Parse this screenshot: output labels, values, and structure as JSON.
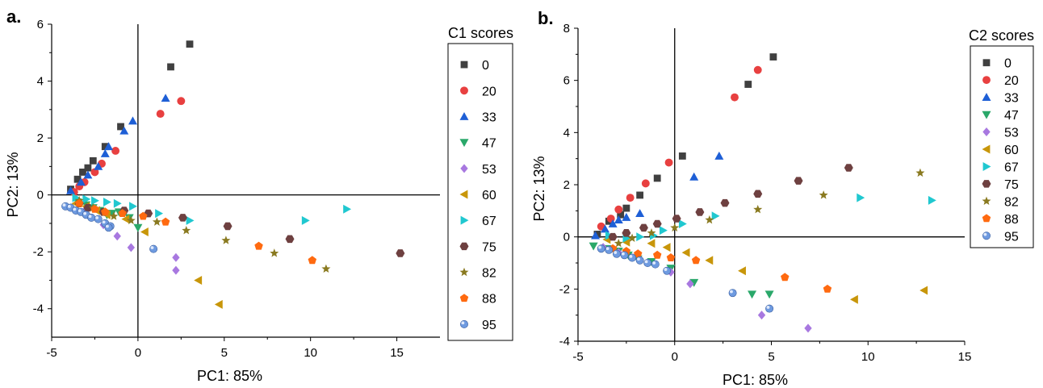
{
  "chart_data": [
    {
      "type": "scatter",
      "panel_label": "a.",
      "xlabel": "PC1: 85%",
      "ylabel": "PC2: 13%",
      "xlim": [
        -5,
        17.5
      ],
      "ylim": [
        -5,
        6
      ],
      "xticks": [
        -5,
        0,
        5,
        10,
        15
      ],
      "yticks": [
        -4,
        -2,
        0,
        2,
        4,
        6
      ],
      "grid": false,
      "legend_title": "C1 scores",
      "legend_position": "right",
      "series": [
        {
          "name": "0",
          "marker": "square",
          "color": "#404040",
          "points": [
            [
              -3.9,
              0.2
            ],
            [
              -3.5,
              0.55
            ],
            [
              -3.2,
              0.8
            ],
            [
              -2.9,
              0.95
            ],
            [
              -2.6,
              1.2
            ],
            [
              -1.9,
              1.7
            ],
            [
              -1.0,
              2.4
            ],
            [
              1.9,
              4.5
            ],
            [
              3.0,
              5.3
            ]
          ]
        },
        {
          "name": "20",
          "marker": "circle",
          "color": "#e84040",
          "points": [
            [
              -3.7,
              0.1
            ],
            [
              -3.4,
              0.3
            ],
            [
              -3.1,
              0.45
            ],
            [
              -2.5,
              0.8
            ],
            [
              -2.1,
              1.1
            ],
            [
              -1.3,
              1.55
            ],
            [
              1.3,
              2.85
            ],
            [
              2.5,
              3.3
            ]
          ]
        },
        {
          "name": "33",
          "marker": "triangle-up",
          "color": "#1e5fd6",
          "points": [
            [
              -3.9,
              0.15
            ],
            [
              -3.3,
              0.45
            ],
            [
              -2.9,
              0.7
            ],
            [
              -2.3,
              1.0
            ],
            [
              -1.9,
              1.45
            ],
            [
              -1.7,
              1.7
            ],
            [
              -0.8,
              2.25
            ],
            [
              -0.3,
              2.6
            ],
            [
              1.6,
              3.4
            ]
          ]
        },
        {
          "name": "47",
          "marker": "triangle-down",
          "color": "#2aa86a",
          "points": [
            [
              -3.5,
              -0.25
            ],
            [
              -3.0,
              -0.35
            ],
            [
              -2.6,
              -0.45
            ],
            [
              -2.2,
              -0.55
            ],
            [
              -1.8,
              -0.7
            ],
            [
              -1.5,
              -0.65
            ],
            [
              -1.1,
              -0.6
            ],
            [
              -0.5,
              -0.8
            ],
            [
              0.0,
              -1.15
            ]
          ]
        },
        {
          "name": "53",
          "marker": "diamond",
          "color": "#a878e0",
          "points": [
            [
              -3.0,
              -0.5
            ],
            [
              -2.0,
              -1.05
            ],
            [
              -1.2,
              -1.45
            ],
            [
              -0.4,
              -1.85
            ],
            [
              2.2,
              -2.2
            ],
            [
              2.2,
              -2.65
            ]
          ]
        },
        {
          "name": "60",
          "marker": "triangle-left",
          "color": "#c8960a",
          "points": [
            [
              -3.6,
              -0.3
            ],
            [
              -3.0,
              -0.4
            ],
            [
              -2.4,
              -0.55
            ],
            [
              -1.8,
              -0.7
            ],
            [
              -0.7,
              -0.85
            ],
            [
              0.4,
              -1.3
            ],
            [
              3.5,
              -3.0
            ],
            [
              4.7,
              -3.85
            ]
          ]
        },
        {
          "name": "67",
          "marker": "triangle-right",
          "color": "#20c8d0",
          "points": [
            [
              -3.6,
              -0.1
            ],
            [
              -3.0,
              -0.15
            ],
            [
              -2.5,
              -0.2
            ],
            [
              -1.8,
              -0.25
            ],
            [
              -1.2,
              -0.3
            ],
            [
              -0.3,
              -0.4
            ],
            [
              1.2,
              -0.65
            ],
            [
              3.0,
              -0.9
            ],
            [
              9.7,
              -0.9
            ],
            [
              12.1,
              -0.5
            ]
          ]
        },
        {
          "name": "75",
          "marker": "hexagon",
          "color": "#6e4040",
          "points": [
            [
              -3.4,
              -0.3
            ],
            [
              -2.9,
              -0.45
            ],
            [
              -2.0,
              -0.6
            ],
            [
              -0.8,
              -0.55
            ],
            [
              0.6,
              -0.65
            ],
            [
              2.6,
              -0.8
            ],
            [
              5.2,
              -1.1
            ],
            [
              8.8,
              -1.55
            ],
            [
              15.2,
              -2.05
            ]
          ]
        },
        {
          "name": "82",
          "marker": "star",
          "color": "#8a7a20",
          "points": [
            [
              -3.4,
              -0.2
            ],
            [
              -2.6,
              -0.45
            ],
            [
              -1.4,
              -0.75
            ],
            [
              -0.4,
              -0.9
            ],
            [
              1.1,
              -0.95
            ],
            [
              2.8,
              -1.25
            ],
            [
              5.1,
              -1.6
            ],
            [
              7.9,
              -2.05
            ],
            [
              10.9,
              -2.6
            ]
          ]
        },
        {
          "name": "88",
          "marker": "pentagon",
          "color": "#ff6a10",
          "points": [
            [
              -3.4,
              -0.3
            ],
            [
              -2.5,
              -0.5
            ],
            [
              -1.9,
              -0.6
            ],
            [
              -0.9,
              -0.65
            ],
            [
              0.3,
              -0.75
            ],
            [
              1.6,
              -0.95
            ],
            [
              7.0,
              -1.8
            ],
            [
              10.1,
              -2.3
            ]
          ]
        },
        {
          "name": "95",
          "marker": "sphere",
          "color": "#6e9ae0",
          "points": [
            [
              -4.2,
              -0.4
            ],
            [
              -3.9,
              -0.45
            ],
            [
              -3.6,
              -0.55
            ],
            [
              -3.3,
              -0.6
            ],
            [
              -3.0,
              -0.7
            ],
            [
              -2.7,
              -0.8
            ],
            [
              -2.3,
              -0.85
            ],
            [
              -1.9,
              -1.0
            ],
            [
              -1.6,
              -1.1
            ],
            [
              -1.7,
              -1.15
            ],
            [
              0.9,
              -1.9
            ]
          ]
        }
      ]
    },
    {
      "type": "scatter",
      "panel_label": "b.",
      "xlabel": "PC1: 85%",
      "ylabel": "PC2: 13%",
      "xlim": [
        -5,
        15
      ],
      "ylim": [
        -4,
        8
      ],
      "xticks": [
        -5,
        0,
        5,
        10,
        15
      ],
      "yticks": [
        -4,
        -2,
        0,
        2,
        4,
        6,
        8
      ],
      "grid": false,
      "legend_title": "C2 scores",
      "legend_position": "right",
      "series": [
        {
          "name": "0",
          "marker": "square",
          "color": "#404040",
          "points": [
            [
              -4.0,
              0.1
            ],
            [
              -3.4,
              0.6
            ],
            [
              -2.8,
              0.85
            ],
            [
              -2.5,
              1.1
            ],
            [
              -1.8,
              1.6
            ],
            [
              -0.9,
              2.25
            ],
            [
              0.4,
              3.1
            ],
            [
              3.8,
              5.85
            ],
            [
              5.1,
              6.9
            ]
          ]
        },
        {
          "name": "20",
          "marker": "circle",
          "color": "#e84040",
          "points": [
            [
              -3.8,
              0.4
            ],
            [
              -3.3,
              0.7
            ],
            [
              -2.9,
              1.05
            ],
            [
              -2.3,
              1.5
            ],
            [
              -1.5,
              2.05
            ],
            [
              -0.3,
              2.85
            ],
            [
              3.1,
              5.35
            ],
            [
              4.3,
              6.4
            ]
          ]
        },
        {
          "name": "33",
          "marker": "triangle-up",
          "color": "#1e5fd6",
          "points": [
            [
              -4.1,
              0.05
            ],
            [
              -3.6,
              0.3
            ],
            [
              -3.2,
              0.5
            ],
            [
              -2.9,
              0.65
            ],
            [
              -2.5,
              0.75
            ],
            [
              -1.8,
              0.9
            ],
            [
              1.0,
              2.3
            ],
            [
              2.3,
              3.1
            ]
          ]
        },
        {
          "name": "47",
          "marker": "triangle-down",
          "color": "#2aa86a",
          "points": [
            [
              -4.2,
              -0.35
            ],
            [
              -3.5,
              -0.45
            ],
            [
              -2.9,
              -0.55
            ],
            [
              -2.4,
              -0.7
            ],
            [
              -1.9,
              -0.85
            ],
            [
              -1.2,
              -0.95
            ],
            [
              -0.2,
              -1.2
            ],
            [
              1.0,
              -1.75
            ],
            [
              4.0,
              -2.2
            ],
            [
              4.9,
              -2.2
            ]
          ]
        },
        {
          "name": "53",
          "marker": "diamond",
          "color": "#a878e0",
          "points": [
            [
              -3.7,
              -0.4
            ],
            [
              -2.9,
              -0.6
            ],
            [
              -1.8,
              -0.85
            ],
            [
              -0.2,
              -1.35
            ],
            [
              0.8,
              -1.8
            ],
            [
              4.5,
              -3.0
            ],
            [
              6.9,
              -3.5
            ]
          ]
        },
        {
          "name": "60",
          "marker": "triangle-left",
          "color": "#c8960a",
          "points": [
            [
              -3.5,
              -0.1
            ],
            [
              -2.5,
              -0.2
            ],
            [
              -1.2,
              -0.25
            ],
            [
              -0.4,
              -0.4
            ],
            [
              0.6,
              -0.6
            ],
            [
              1.8,
              -0.9
            ],
            [
              3.5,
              -1.3
            ],
            [
              9.3,
              -2.4
            ],
            [
              12.9,
              -2.05
            ]
          ]
        },
        {
          "name": "67",
          "marker": "triangle-right",
          "color": "#20c8d0",
          "points": [
            [
              -3.4,
              0.05
            ],
            [
              -2.5,
              -0.05
            ],
            [
              -1.8,
              0.0
            ],
            [
              -1.1,
              0.05
            ],
            [
              -0.6,
              0.25
            ],
            [
              0.4,
              0.5
            ],
            [
              2.1,
              0.8
            ],
            [
              9.6,
              1.5
            ],
            [
              13.3,
              1.4
            ]
          ]
        },
        {
          "name": "75",
          "marker": "hexagon",
          "color": "#6e4040",
          "points": [
            [
              -3.2,
              0.0
            ],
            [
              -2.5,
              0.15
            ],
            [
              -1.6,
              0.35
            ],
            [
              -0.9,
              0.5
            ],
            [
              0.1,
              0.7
            ],
            [
              1.3,
              0.95
            ],
            [
              2.6,
              1.3
            ],
            [
              4.3,
              1.65
            ],
            [
              6.4,
              2.15
            ],
            [
              9.0,
              2.65
            ]
          ]
        },
        {
          "name": "82",
          "marker": "star",
          "color": "#8a7a20",
          "points": [
            [
              -2.9,
              -0.25
            ],
            [
              -2.2,
              -0.05
            ],
            [
              -1.2,
              0.15
            ],
            [
              0.0,
              0.35
            ],
            [
              1.8,
              0.65
            ],
            [
              4.3,
              1.05
            ],
            [
              7.7,
              1.6
            ],
            [
              12.7,
              2.45
            ]
          ]
        },
        {
          "name": "88",
          "marker": "pentagon",
          "color": "#ff6a10",
          "points": [
            [
              -3.2,
              -0.45
            ],
            [
              -2.5,
              -0.55
            ],
            [
              -1.9,
              -0.65
            ],
            [
              -0.9,
              -0.7
            ],
            [
              -0.2,
              -0.8
            ],
            [
              1.1,
              -0.9
            ],
            [
              5.7,
              -1.55
            ],
            [
              7.9,
              -2.0
            ]
          ]
        },
        {
          "name": "95",
          "marker": "sphere",
          "color": "#6e9ae0",
          "points": [
            [
              -3.8,
              -0.45
            ],
            [
              -3.4,
              -0.5
            ],
            [
              -3.0,
              -0.65
            ],
            [
              -2.6,
              -0.7
            ],
            [
              -2.2,
              -0.8
            ],
            [
              -1.8,
              -0.9
            ],
            [
              -1.4,
              -1.0
            ],
            [
              -1.0,
              -1.05
            ],
            [
              -0.4,
              -1.3
            ],
            [
              3.0,
              -2.15
            ],
            [
              4.9,
              -2.75
            ]
          ]
        }
      ]
    }
  ]
}
